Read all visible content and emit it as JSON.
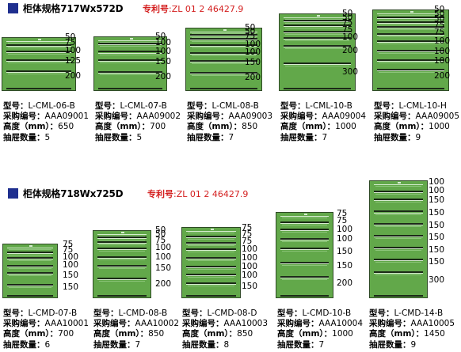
{
  "section1": {
    "title": "柜体规格717Wx572D",
    "patent_label": "专利号",
    "patent_number": ":ZL 01 2 46427.9",
    "cabinets": [
      {
        "model": "L-CML-06-B",
        "code": "AAA09001",
        "height": "650",
        "drawers": "5",
        "drawer_heights": [
          "50",
          "75",
          "100",
          "125",
          "200"
        ]
      },
      {
        "model": "L-CML-07-B",
        "code": "AAA09002",
        "height": "700",
        "drawers": "5",
        "drawer_heights": [
          "50",
          "100",
          "100",
          "150",
          "200"
        ]
      },
      {
        "model": "L-CML-08-B",
        "code": "AAA09003",
        "height": "850",
        "drawers": "7",
        "drawer_heights": [
          "50",
          "50",
          "75",
          "100",
          "100",
          "150",
          "200"
        ]
      },
      {
        "model": "L-CML-10-B",
        "code": "AAA09004",
        "height": "1000",
        "drawers": "7",
        "drawer_heights": [
          "50",
          "50",
          "75",
          "75",
          "100",
          "200",
          "300"
        ]
      },
      {
        "model": "L-CML-10-H",
        "code": "AAA09005",
        "height": "1000",
        "drawers": "9",
        "drawer_heights": [
          "50",
          "50",
          "50",
          "75",
          "75",
          "100",
          "100",
          "100",
          "200"
        ]
      }
    ]
  },
  "section2": {
    "title": "柜体规格718Wx725D",
    "patent_label": "专利号",
    "patent_number": ":ZL 01 2 46427.9",
    "cabinets": [
      {
        "model": "L-CMD-07-B",
        "code": "AAA10001",
        "height": "700",
        "drawers": "6",
        "drawer_heights": [
          "75",
          "75",
          "100",
          "100",
          "150",
          "150"
        ]
      },
      {
        "model": "L-CMD-08-B",
        "code": "AAA10002",
        "height": "850",
        "drawers": "7",
        "drawer_heights": [
          "50",
          "50",
          "75",
          "100",
          "100",
          "150",
          "200"
        ]
      },
      {
        "model": "L-CMD-08-D",
        "code": "AAA10003",
        "height": "850",
        "drawers": "8",
        "drawer_heights": [
          "75",
          "75",
          "75",
          "100",
          "100",
          "100",
          "100",
          "150"
        ]
      },
      {
        "model": "L-CMD-10-B",
        "code": "AAA10004",
        "height": "1000",
        "drawers": "7",
        "drawer_heights": [
          "75",
          "75",
          "100",
          "100",
          "150",
          "150",
          "200"
        ]
      },
      {
        "model": "L-CMD-14-B",
        "code": "AAA10005",
        "height": "1450",
        "drawers": "9",
        "drawer_heights": [
          "100",
          "100",
          "150",
          "150",
          "150",
          "150",
          "150",
          "150",
          "300"
        ]
      }
    ]
  },
  "labels": {
    "model": "型号：",
    "code": "采购编号：",
    "height": "高度（mm）：",
    "drawers": "抽屉数量："
  }
}
